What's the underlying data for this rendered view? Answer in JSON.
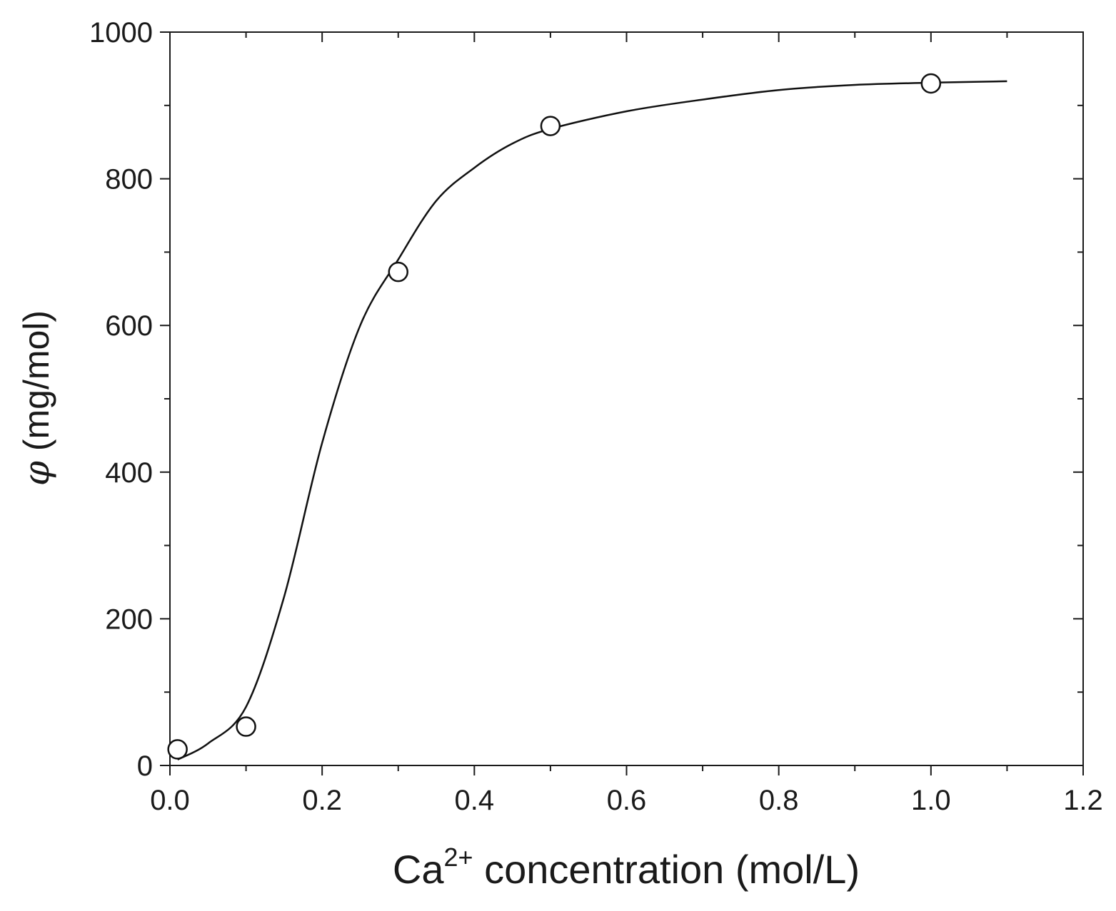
{
  "chart_data": {
    "type": "scatter",
    "xlabel": {
      "base": "Ca",
      "superscript": "2+",
      "rest": " concentration (mol/L)"
    },
    "ylabel": {
      "symbol": "φ",
      "rest": " (mg/mol)"
    },
    "xlim": [
      0.0,
      1.2
    ],
    "ylim": [
      0,
      1000
    ],
    "xticks": [
      "0.0",
      "0.2",
      "0.4",
      "0.6",
      "0.8",
      "1.0",
      "1.2"
    ],
    "yticks": [
      "0",
      "200",
      "400",
      "600",
      "800",
      "1000"
    ],
    "grid": false,
    "series": [
      {
        "kind": "points",
        "marker": "open-circle",
        "x": [
          0.01,
          0.1,
          0.3,
          0.5,
          1.0
        ],
        "y": [
          22,
          53,
          673,
          872,
          930
        ]
      },
      {
        "kind": "fit-line",
        "x": [
          0.01,
          0.05,
          0.1,
          0.15,
          0.2,
          0.25,
          0.3,
          0.35,
          0.4,
          0.45,
          0.5,
          0.6,
          0.7,
          0.8,
          0.9,
          1.0,
          1.1
        ],
        "y": [
          8,
          30,
          80,
          230,
          440,
          600,
          690,
          770,
          815,
          848,
          868,
          892,
          908,
          921,
          928,
          931,
          933
        ]
      }
    ],
    "colors": {
      "line": "#111111",
      "marker_edge": "#111111",
      "marker_fill": "#ffffff",
      "axis": "#1a1a1a"
    }
  }
}
